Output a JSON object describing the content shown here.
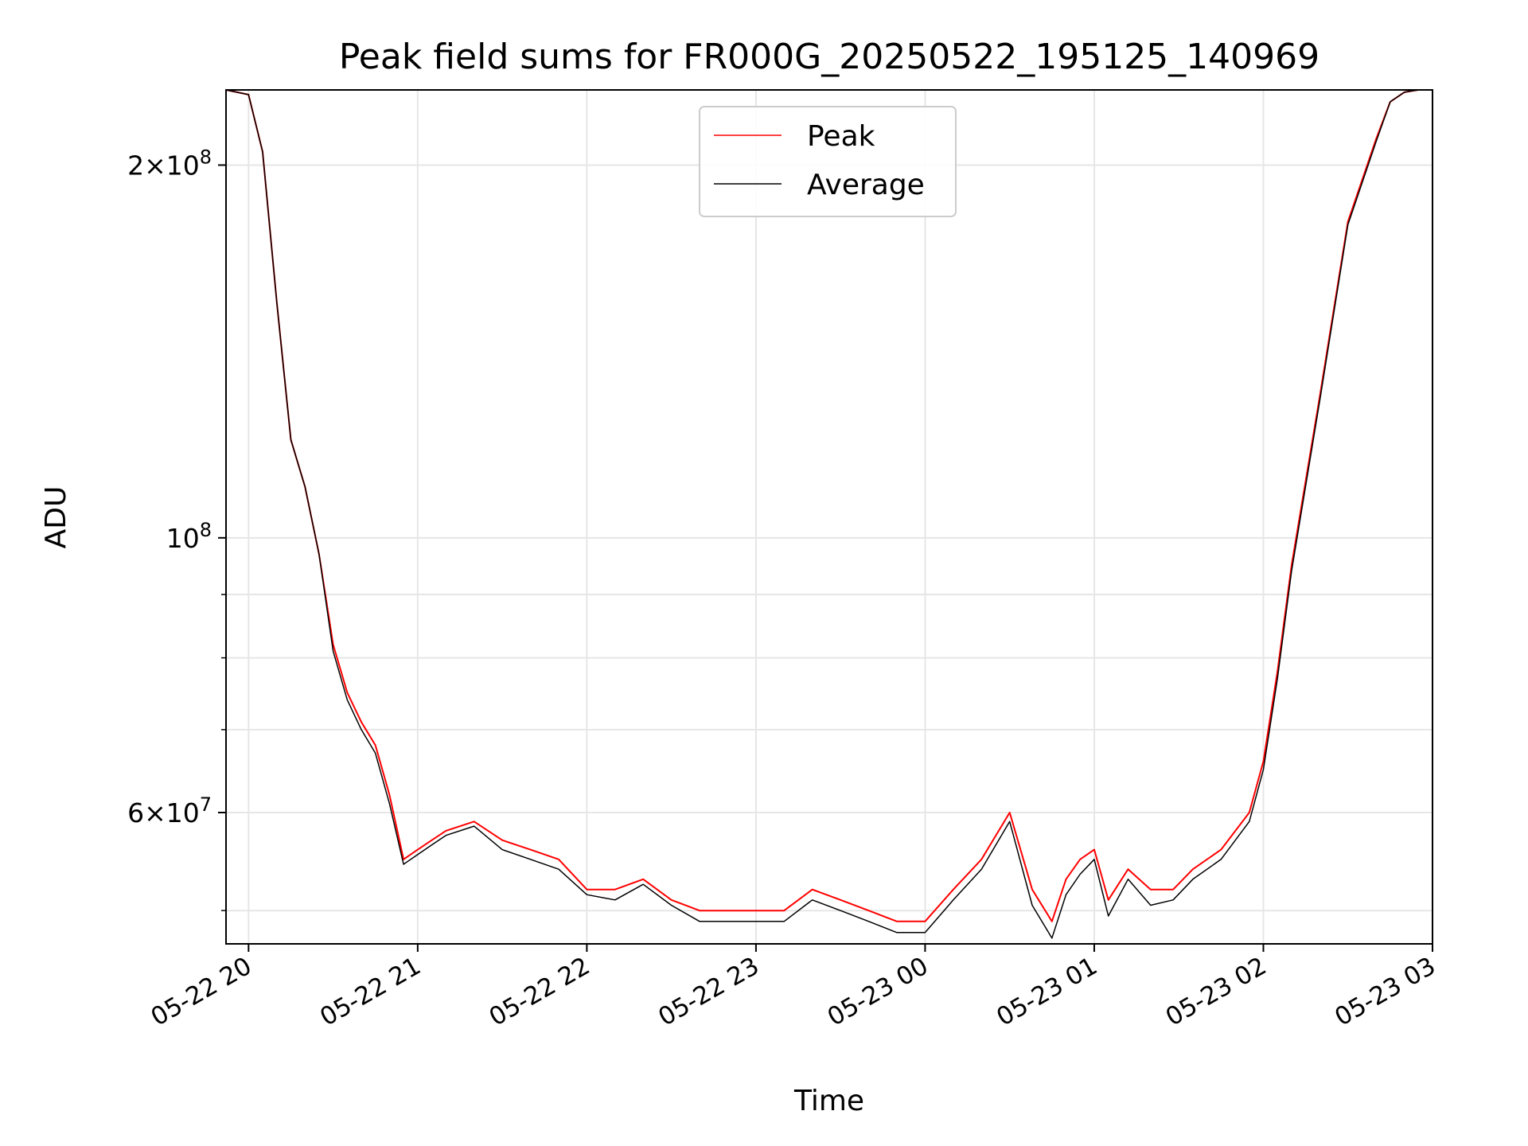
{
  "chart_data": {
    "type": "line",
    "title": "Peak field sums for FR000G_20250522_195125_140969",
    "xlabel": "Time",
    "ylabel": "ADU",
    "y_scale": "log",
    "grid": true,
    "legend_position": "top-center",
    "xlim": [
      "2025-05-22 19:52",
      "2025-05-23 03:00"
    ],
    "ylim": [
      47000000,
      230000000
    ],
    "x_ticks": [
      {
        "value": "2025-05-22 20:00",
        "label": "05-22 20"
      },
      {
        "value": "2025-05-22 21:00",
        "label": "05-22 21"
      },
      {
        "value": "2025-05-22 22:00",
        "label": "05-22 22"
      },
      {
        "value": "2025-05-22 23:00",
        "label": "05-22 23"
      },
      {
        "value": "2025-05-23 00:00",
        "label": "05-23 00"
      },
      {
        "value": "2025-05-23 01:00",
        "label": "05-23 01"
      },
      {
        "value": "2025-05-23 02:00",
        "label": "05-23 02"
      },
      {
        "value": "2025-05-23 03:00",
        "label": "05-23 03"
      }
    ],
    "y_major_ticks": [
      {
        "value": 200000000,
        "base": "2",
        "exp": "8"
      },
      {
        "value": 100000000,
        "base": "",
        "exp": "8"
      },
      {
        "value": 60000000,
        "base": "6",
        "exp": "7"
      }
    ],
    "y_minor_ticks": [
      50000000,
      70000000,
      80000000,
      90000000
    ],
    "x": [
      "2025-05-22 19:52",
      "2025-05-22 20:00",
      "2025-05-22 20:05",
      "2025-05-22 20:10",
      "2025-05-22 20:15",
      "2025-05-22 20:20",
      "2025-05-22 20:25",
      "2025-05-22 20:30",
      "2025-05-22 20:35",
      "2025-05-22 20:40",
      "2025-05-22 20:45",
      "2025-05-22 20:50",
      "2025-05-22 20:55",
      "2025-05-22 21:00",
      "2025-05-22 21:05",
      "2025-05-22 21:10",
      "2025-05-22 21:20",
      "2025-05-22 21:30",
      "2025-05-22 21:40",
      "2025-05-22 21:50",
      "2025-05-22 22:00",
      "2025-05-22 22:10",
      "2025-05-22 22:20",
      "2025-05-22 22:30",
      "2025-05-22 22:40",
      "2025-05-22 22:50",
      "2025-05-22 23:00",
      "2025-05-22 23:10",
      "2025-05-22 23:20",
      "2025-05-22 23:30",
      "2025-05-22 23:40",
      "2025-05-22 23:50",
      "2025-05-23 00:00",
      "2025-05-23 00:10",
      "2025-05-23 00:20",
      "2025-05-23 00:30",
      "2025-05-23 00:38",
      "2025-05-23 00:45",
      "2025-05-23 00:50",
      "2025-05-23 00:55",
      "2025-05-23 01:00",
      "2025-05-23 01:05",
      "2025-05-23 01:12",
      "2025-05-23 01:20",
      "2025-05-23 01:28",
      "2025-05-23 01:35",
      "2025-05-23 01:45",
      "2025-05-23 01:55",
      "2025-05-23 02:00",
      "2025-05-23 02:05",
      "2025-05-23 02:10",
      "2025-05-23 02:20",
      "2025-05-23 02:30",
      "2025-05-23 02:40",
      "2025-05-23 02:45",
      "2025-05-23 02:50",
      "2025-05-23 02:55",
      "2025-05-23 03:00"
    ],
    "series": [
      {
        "name": "Peak",
        "color": "#ff0000",
        "values": [
          230000000,
          228000000,
          205000000,
          155000000,
          120000000,
          110000000,
          97000000,
          82000000,
          75000000,
          71000000,
          68000000,
          62000000,
          55000000,
          56000000,
          57000000,
          58000000,
          59000000,
          57000000,
          56000000,
          55000000,
          52000000,
          52000000,
          53000000,
          51000000,
          50000000,
          50000000,
          50000000,
          50000000,
          52000000,
          51000000,
          50000000,
          49000000,
          49000000,
          52000000,
          55000000,
          60000000,
          52000000,
          49000000,
          53000000,
          55000000,
          56000000,
          51000000,
          54000000,
          52000000,
          52000000,
          54000000,
          56000000,
          60000000,
          66000000,
          78000000,
          95000000,
          130000000,
          180000000,
          210000000,
          225000000,
          229000000,
          230000000,
          230000000
        ]
      },
      {
        "name": "Average",
        "color": "#000000",
        "values": [
          230000000,
          228000000,
          205000000,
          155000000,
          120000000,
          110000000,
          97000000,
          81000000,
          74000000,
          70000000,
          67000000,
          61000000,
          54500000,
          55500000,
          56500000,
          57500000,
          58500000,
          56000000,
          55000000,
          54000000,
          51500000,
          51000000,
          52500000,
          50500000,
          49000000,
          49000000,
          49000000,
          49000000,
          51000000,
          50000000,
          49000000,
          48000000,
          48000000,
          51000000,
          54000000,
          59000000,
          50500000,
          47500000,
          51500000,
          53500000,
          55000000,
          49500000,
          53000000,
          50500000,
          51000000,
          53000000,
          55000000,
          59000000,
          65000000,
          77000000,
          94000000,
          129000000,
          179000000,
          209000000,
          225000000,
          229000000,
          230000000,
          230000000
        ]
      }
    ]
  }
}
